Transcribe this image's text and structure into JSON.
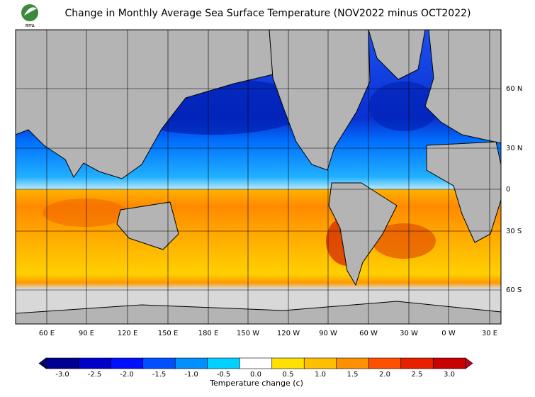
{
  "logo": "สสน",
  "title": "Change in Monthly Average Sea Surface Temperature (NOV2022 minus OCT2022)",
  "map": {
    "lat_labels": [
      "60 N",
      "30 N",
      "0",
      "30 S",
      "60 S"
    ],
    "lon_labels": [
      "60 E",
      "90 E",
      "120 E",
      "150 E",
      "180 E",
      "150 W",
      "120 W",
      "90 W",
      "60 W",
      "30 W",
      "0 W",
      "30 E"
    ]
  },
  "colorbar": {
    "ticks": [
      {
        "value": -3,
        "label": "-3.0"
      },
      {
        "value": -2.5,
        "label": "-2.5"
      },
      {
        "value": -2,
        "label": "-2.0"
      },
      {
        "value": -1.5,
        "label": "-1.5"
      },
      {
        "value": -1,
        "label": "-1.0"
      },
      {
        "value": -0.5,
        "label": "-0.5"
      },
      {
        "value": 0,
        "label": "0.0"
      },
      {
        "value": 0.5,
        "label": "0.5"
      },
      {
        "value": 1,
        "label": "1.0"
      },
      {
        "value": 1.5,
        "label": "1.5"
      },
      {
        "value": 2,
        "label": "2.0"
      },
      {
        "value": 2.5,
        "label": "2.5"
      },
      {
        "value": 3,
        "label": "3.0"
      }
    ],
    "colors": [
      "#000090",
      "#0000c8",
      "#0010ff",
      "#0050ff",
      "#0090ff",
      "#00d0ff",
      "#ffffff",
      "#ffe000",
      "#ffc000",
      "#ff9000",
      "#ff5000",
      "#e82000",
      "#c80000"
    ],
    "label": "Temperature change  (c)"
  }
}
